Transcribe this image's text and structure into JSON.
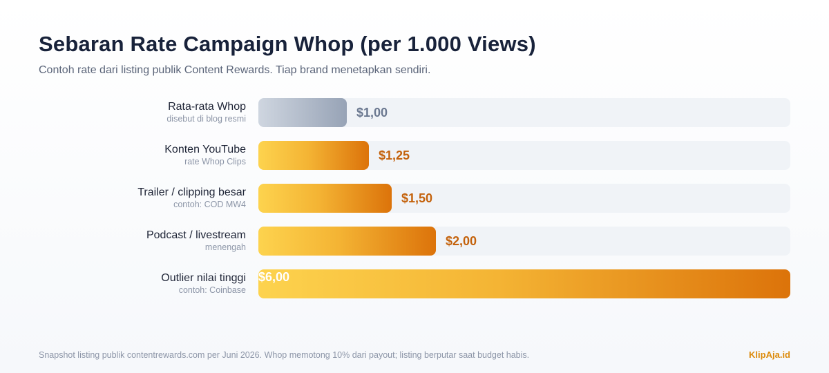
{
  "title": "Sebaran Rate Campaign Whop (per 1.000 Views)",
  "subtitle": "Contoh rate dari listing publik Content Rewards. Tiap brand menetapkan sendiri.",
  "footer": "Snapshot listing publik contentrewards.com per Juni 2026. Whop memotong 10% dari payout; listing berputar saat budget habis.",
  "brand": "KlipAja.id",
  "colors": {
    "baseline_bar_start": "#cfd6e0",
    "baseline_bar_end": "#97a3b6",
    "bar_start": "#fdd34e",
    "bar_end": "#dc730a",
    "track": "#f0f3f7",
    "brand": "#dc8a0a"
  },
  "chart_data": {
    "type": "bar",
    "orientation": "horizontal",
    "unit": "$ per 1.000 views",
    "xlim": [
      0,
      6
    ],
    "categories": [
      "Rata-rata Whop",
      "Konten YouTube",
      "Trailer / clipping besar",
      "Podcast / livestream",
      "Outlier nilai tinggi"
    ],
    "category_notes": [
      "disebut di blog resmi",
      "rate Whop Clips",
      "contoh: COD MW4",
      "menengah",
      "contoh: Coinbase"
    ],
    "values": [
      1.0,
      1.25,
      1.5,
      2.0,
      6.0
    ],
    "value_labels": [
      "$1,00",
      "$1,25",
      "$1,50",
      "$2,00",
      "$6,00"
    ],
    "highlight": [
      true,
      false,
      false,
      false,
      false
    ]
  }
}
